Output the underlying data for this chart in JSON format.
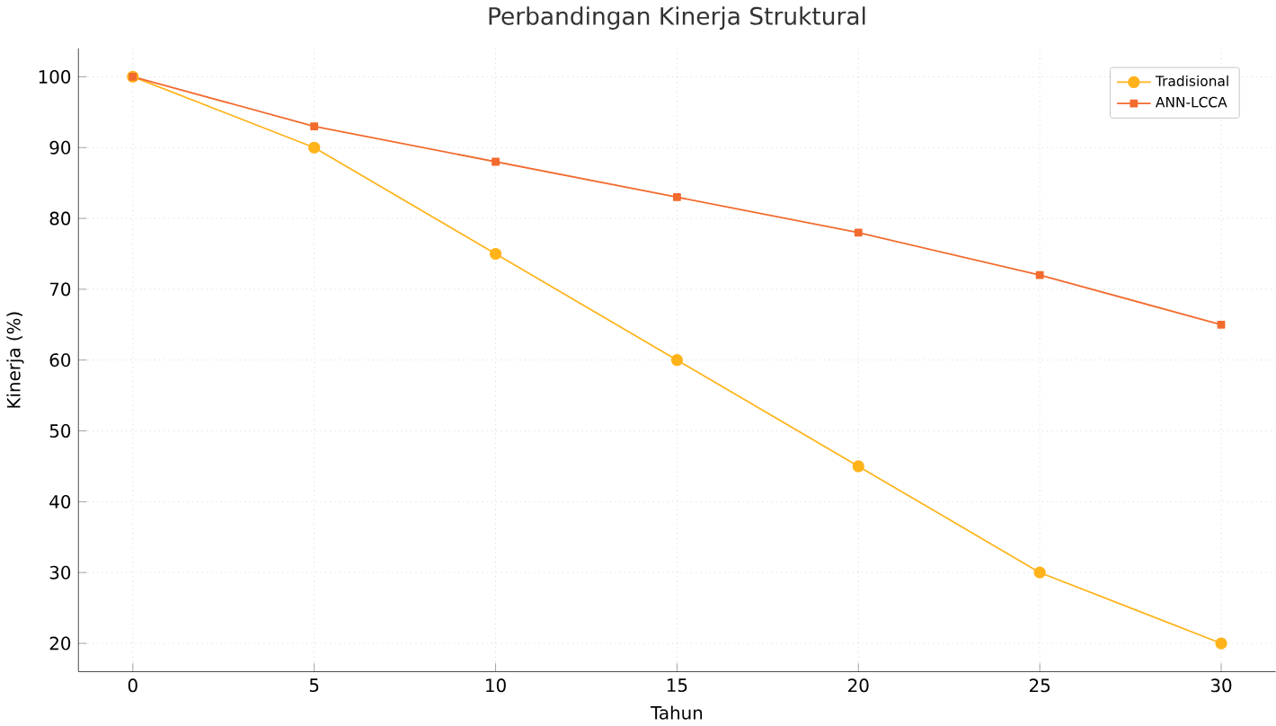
{
  "chart_data": {
    "type": "line",
    "title": "Perbandingan Kinerja Struktural",
    "xlabel": "Tahun",
    "ylabel": "Kinerja (%)",
    "x": [
      0,
      5,
      10,
      15,
      20,
      25,
      30
    ],
    "series": [
      {
        "name": "Tradisional",
        "color": "#ffb31a",
        "marker": "circle",
        "values": [
          100,
          90,
          75,
          60,
          45,
          30,
          20
        ]
      },
      {
        "name": "ANN-LCCA",
        "color": "#f26b2e",
        "marker": "square",
        "values": [
          100,
          93,
          88,
          83,
          78,
          72,
          65
        ]
      }
    ],
    "xlim": [
      -1.5,
      31.5
    ],
    "ylim": [
      16,
      104
    ],
    "xticks": [
      0,
      5,
      10,
      15,
      20,
      25,
      30
    ],
    "yticks": [
      20,
      30,
      40,
      50,
      60,
      70,
      80,
      90,
      100
    ],
    "grid": true,
    "legend": "top right"
  }
}
